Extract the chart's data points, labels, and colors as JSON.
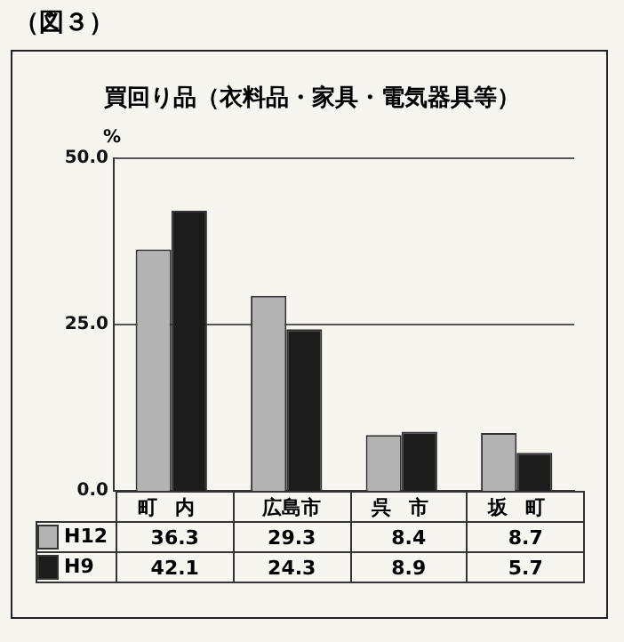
{
  "chart_data": {
    "type": "bar",
    "title": "買回り品（衣料品・家具・電気器具等）",
    "ylabel": "%",
    "annotations": [
      "（図３）"
    ],
    "categories": [
      "町内",
      "広島市",
      "呉市",
      "坂町"
    ],
    "series": [
      {
        "name": "H12",
        "color": "#b3b3b3",
        "values": [
          36.3,
          29.3,
          8.4,
          8.7
        ]
      },
      {
        "name": "H9",
        "color": "#1c1c1c",
        "values": [
          42.1,
          24.3,
          8.9,
          5.7
        ]
      }
    ],
    "ylim": [
      0,
      50
    ],
    "yticks": [
      {
        "value": 0,
        "label": "0.0"
      },
      {
        "value": 25,
        "label": "25.0"
      },
      {
        "value": 50,
        "label": "50.0"
      }
    ],
    "grid": "y",
    "legend": "bottom",
    "data_labels": true
  }
}
